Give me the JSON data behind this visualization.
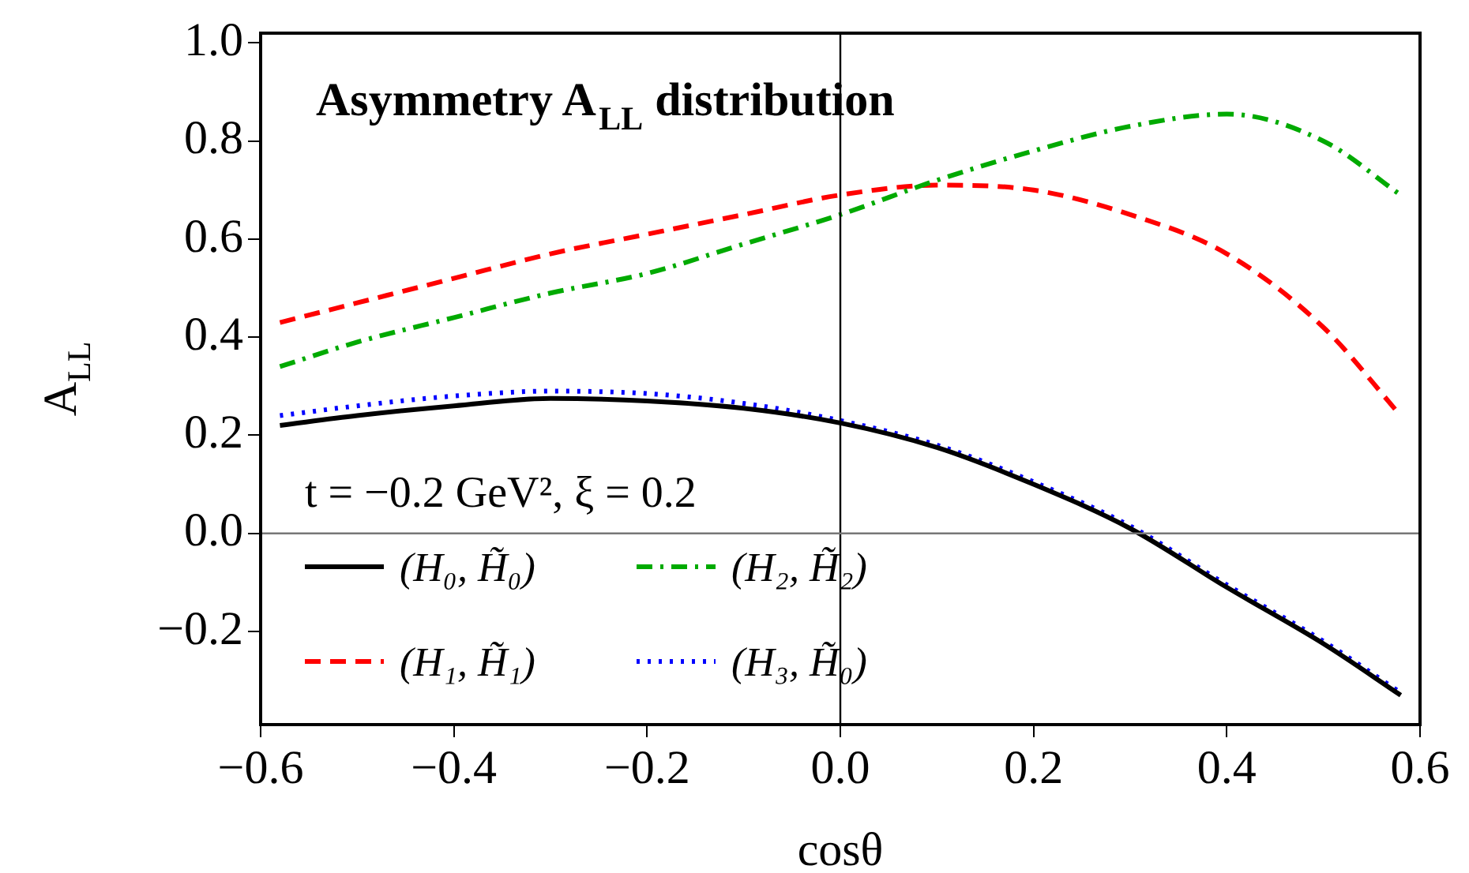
{
  "chart_data": {
    "type": "line",
    "title": "Asymmetry A$_{LL}$ distribution",
    "xlabel": "cosθ",
    "ylabel": "A$_{LL}$",
    "annotations": [
      "t = −0.2 GeV², ξ = 0.2"
    ],
    "xlim": [
      -0.6,
      0.6
    ],
    "ylim": [
      -0.39,
      1.02
    ],
    "xticks": [
      -0.6,
      -0.4,
      -0.2,
      {
        "value": 0,
        "label": "0.0"
      },
      0.2,
      0.4,
      0.6
    ],
    "yticks": [
      -0.2,
      {
        "value": 0,
        "label": "0.0"
      },
      0.2,
      0.4,
      0.6,
      0.8,
      {
        "value": 1,
        "label": "1.0"
      }
    ],
    "x": [
      -0.58,
      -0.5,
      -0.4,
      -0.3,
      -0.2,
      -0.1,
      0,
      0.1,
      0.2,
      0.3,
      0.4,
      0.5,
      0.58
    ],
    "series": [
      {
        "name": "(H₀, H̃₀)",
        "color": "#000000",
        "line_style": "solid",
        "values": [
          0.22,
          0.24,
          0.26,
          0.275,
          0.27,
          0.255,
          0.225,
          0.175,
          0.1,
          0.01,
          -0.11,
          -0.225,
          -0.33
        ]
      },
      {
        "name": "(H₂, H̃₂)",
        "color": "#00aa00",
        "line_style": "dashdot",
        "values": [
          0.34,
          0.39,
          0.44,
          0.49,
          0.53,
          0.59,
          0.65,
          0.72,
          0.78,
          0.83,
          0.855,
          0.8,
          0.69
        ]
      },
      {
        "name": "(H₁, H̃₁)",
        "color": "#ff0000",
        "line_style": "dashed",
        "values": [
          0.43,
          0.47,
          0.52,
          0.57,
          0.61,
          0.65,
          0.69,
          0.71,
          0.7,
          0.65,
          0.57,
          0.42,
          0.24
        ]
      },
      {
        "name": "(H₃, H̃₀)",
        "color": "#0000ff",
        "line_style": "dotted",
        "values": [
          0.24,
          0.26,
          0.28,
          0.29,
          0.285,
          0.265,
          0.23,
          0.18,
          0.105,
          0.015,
          -0.105,
          -0.22,
          -0.325
        ]
      }
    ],
    "ref_lines": [
      {
        "axis": "x",
        "value": 0,
        "color": "#000000"
      },
      {
        "axis": "y",
        "value": 0,
        "color": "#777777"
      }
    ],
    "grid": false,
    "legend": "bottom left"
  }
}
